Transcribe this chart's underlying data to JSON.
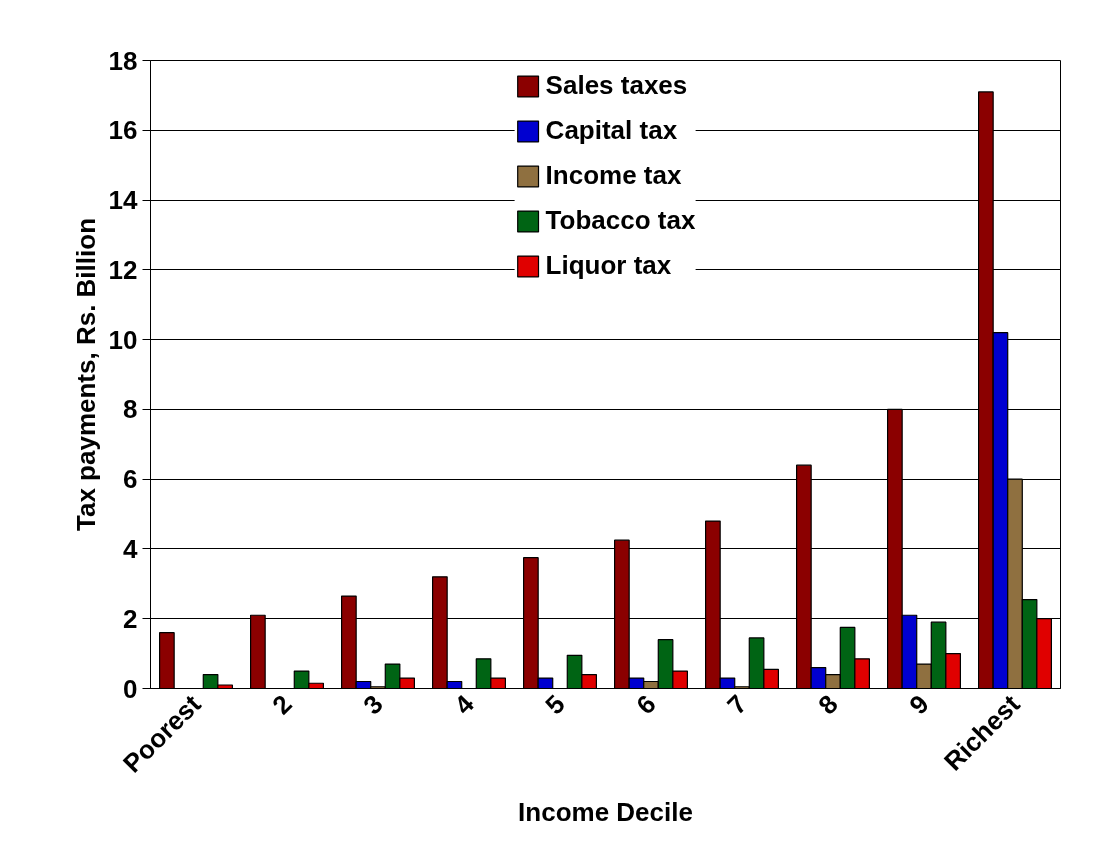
{
  "chart_data": {
    "type": "bar",
    "xlabel": "Income Decile",
    "ylabel": "Tax payments, Rs. Billion",
    "categories": [
      "Poorest",
      "2",
      "3",
      "4",
      "5",
      "6",
      "7",
      "8",
      "9",
      "Richest"
    ],
    "series": [
      {
        "name": "Sales taxes",
        "color": "#8b0000",
        "values": [
          1.6,
          2.1,
          2.65,
          3.2,
          3.75,
          4.25,
          4.8,
          6.4,
          8.0,
          17.1
        ]
      },
      {
        "name": "Capital tax",
        "color": "#0000d0",
        "values": [
          null,
          null,
          0.2,
          0.2,
          0.3,
          0.3,
          0.3,
          0.6,
          2.1,
          10.2
        ]
      },
      {
        "name": "Income tax",
        "color": "#8f7040",
        "values": [
          null,
          null,
          0.05,
          null,
          null,
          0.2,
          0.05,
          0.4,
          0.7,
          6.0
        ]
      },
      {
        "name": "Tobacco tax",
        "color": "#006414",
        "values": [
          0.4,
          0.5,
          0.7,
          0.85,
          0.95,
          1.4,
          1.45,
          1.75,
          1.9,
          2.55
        ]
      },
      {
        "name": "Liquor tax",
        "color": "#e00000",
        "values": [
          0.1,
          0.15,
          0.3,
          0.3,
          0.4,
          0.5,
          0.55,
          0.85,
          1.0,
          2.0
        ]
      }
    ],
    "ylim": [
      0,
      18
    ],
    "yticks": [
      0,
      2,
      4,
      6,
      8,
      10,
      12,
      14,
      16,
      18
    ],
    "grid": "y",
    "legend": "top"
  }
}
